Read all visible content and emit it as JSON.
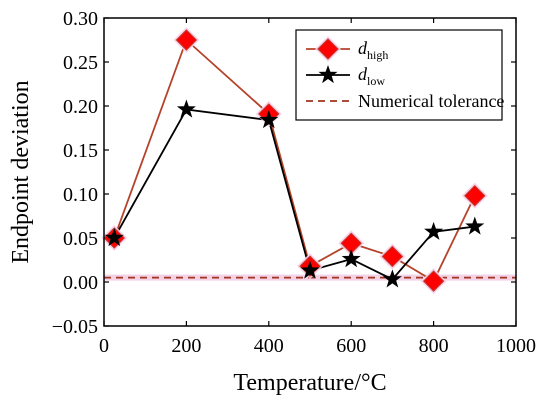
{
  "chart_data": {
    "type": "line",
    "xlabel": "Temperature/°C",
    "ylabel": "Endpoint deviation",
    "xlim": [
      0,
      1000
    ],
    "ylim": [
      -0.05,
      0.3
    ],
    "x_ticks": [
      "0",
      "200",
      "400",
      "600",
      "800",
      "1000"
    ],
    "y_ticks": [
      "−0.05",
      "0.00",
      "0.05",
      "0.10",
      "0.15",
      "0.20",
      "0.25",
      "0.30"
    ],
    "legend_position": "top-right",
    "series": [
      {
        "name_main": "d",
        "name_sub": "high",
        "color": "#b5422a",
        "marker_color": "#ff0000",
        "marker": "diamond",
        "x": [
          25,
          200,
          400,
          500,
          600,
          700,
          800,
          900
        ],
        "y": [
          0.05,
          0.275,
          0.191,
          0.018,
          0.044,
          0.029,
          0.001,
          0.098
        ]
      },
      {
        "name_main": "d",
        "name_sub": "low",
        "color": "#000000",
        "marker_color": "#000000",
        "marker": "star",
        "x": [
          25,
          200,
          400,
          500,
          600,
          700,
          800,
          900
        ],
        "y": [
          0.05,
          0.196,
          0.184,
          0.013,
          0.026,
          0.003,
          0.057,
          0.063
        ]
      }
    ],
    "reference_line": {
      "name": "Numerical tolerance",
      "y": 0.005,
      "color": "#a0341e",
      "style": "dashed"
    }
  }
}
